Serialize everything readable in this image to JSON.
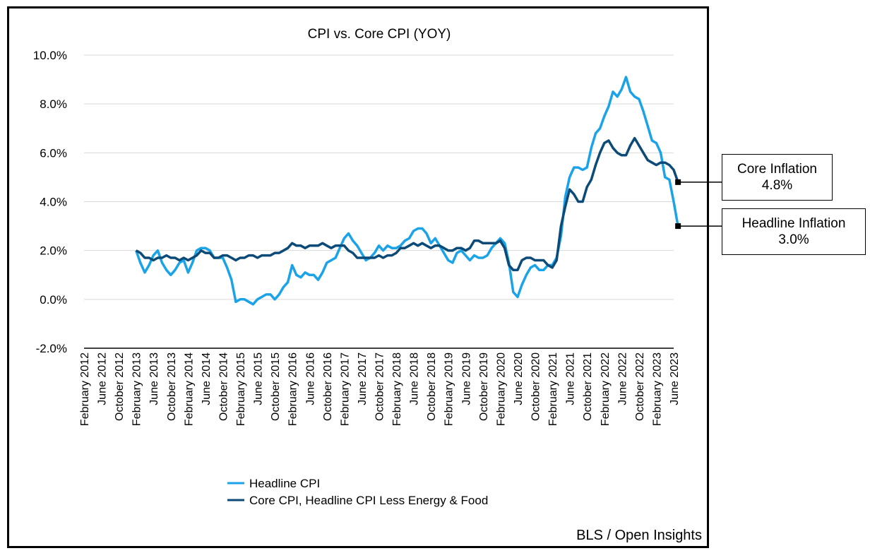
{
  "chart_data": {
    "type": "line",
    "title": "CPI vs. Core CPI (YOY)",
    "xlabel": "",
    "ylabel": "",
    "ylim": [
      -2.0,
      10.0
    ],
    "yticks": [
      "10.0%",
      "8.0%",
      "6.0%",
      "4.0%",
      "2.0%",
      "0.0%",
      "-2.0%"
    ],
    "ytick_values": [
      10,
      8,
      6,
      4,
      2,
      0,
      -2
    ],
    "x_range": [
      "2012-02",
      "2023-06"
    ],
    "xtick_labels": [
      "February 2012",
      "June 2012",
      "October 2012",
      "February 2013",
      "June 2013",
      "October 2013",
      "February 2014",
      "June 2014",
      "October 2014",
      "February 2015",
      "June 2015",
      "October 2015",
      "February 2016",
      "June 2016",
      "October 2016",
      "February 2017",
      "June 2017",
      "October 2017",
      "February 2018",
      "June 2018",
      "October 2018",
      "February 2019",
      "June 2019",
      "October 2019",
      "February 2020",
      "June 2020",
      "October 2020",
      "February 2021",
      "June 2021",
      "October 2021",
      "February 2022",
      "June 2022",
      "October 2022",
      "February 2023",
      "June 2023"
    ],
    "grid": "horizontal",
    "legend_position": "bottom",
    "series": [
      {
        "name": "Headline CPI",
        "color": "#1aa3e8",
        "start": "2013-02",
        "values": [
          2.0,
          1.5,
          1.1,
          1.4,
          1.8,
          2.0,
          1.5,
          1.2,
          1.0,
          1.2,
          1.5,
          1.6,
          1.1,
          1.5,
          2.0,
          2.1,
          2.1,
          2.0,
          1.7,
          1.7,
          1.7,
          1.3,
          0.8,
          -0.1,
          0.0,
          0.0,
          -0.1,
          -0.2,
          0.0,
          0.1,
          0.2,
          0.2,
          0.0,
          0.2,
          0.5,
          0.7,
          1.4,
          1.0,
          0.9,
          1.1,
          1.0,
          1.0,
          0.8,
          1.1,
          1.5,
          1.6,
          1.7,
          2.1,
          2.5,
          2.7,
          2.4,
          2.2,
          1.9,
          1.6,
          1.7,
          1.9,
          2.2,
          2.0,
          2.2,
          2.1,
          2.1,
          2.2,
          2.4,
          2.5,
          2.8,
          2.9,
          2.9,
          2.7,
          2.3,
          2.5,
          2.2,
          1.9,
          1.6,
          1.5,
          1.9,
          2.0,
          1.8,
          1.6,
          1.8,
          1.7,
          1.7,
          1.8,
          2.1,
          2.3,
          2.5,
          2.3,
          1.5,
          0.3,
          0.1,
          0.6,
          1.0,
          1.3,
          1.4,
          1.2,
          1.2,
          1.4,
          1.4,
          1.7,
          2.6,
          4.2,
          5.0,
          5.4,
          5.4,
          5.3,
          5.4,
          6.2,
          6.8,
          7.0,
          7.5,
          7.9,
          8.5,
          8.3,
          8.6,
          9.1,
          8.5,
          8.3,
          8.2,
          7.7,
          7.1,
          6.5,
          6.4,
          6.0,
          5.0,
          4.9,
          4.0,
          3.0
        ]
      },
      {
        "name": "Core CPI, Headline CPI Less Energy & Food",
        "color": "#0c4a77",
        "start": "2013-02",
        "values": [
          2.0,
          1.9,
          1.7,
          1.7,
          1.6,
          1.7,
          1.7,
          1.8,
          1.7,
          1.7,
          1.6,
          1.7,
          1.6,
          1.7,
          1.8,
          2.0,
          1.9,
          1.9,
          1.7,
          1.7,
          1.8,
          1.8,
          1.7,
          1.6,
          1.7,
          1.7,
          1.8,
          1.8,
          1.7,
          1.8,
          1.8,
          1.8,
          1.9,
          1.9,
          2.0,
          2.1,
          2.3,
          2.2,
          2.2,
          2.1,
          2.2,
          2.2,
          2.2,
          2.3,
          2.2,
          2.1,
          2.2,
          2.2,
          2.2,
          2.0,
          1.9,
          1.7,
          1.7,
          1.7,
          1.7,
          1.7,
          1.8,
          1.7,
          1.8,
          1.8,
          1.9,
          2.1,
          2.1,
          2.2,
          2.3,
          2.2,
          2.3,
          2.2,
          2.1,
          2.2,
          2.2,
          2.1,
          2.0,
          2.0,
          2.1,
          2.1,
          2.0,
          2.1,
          2.4,
          2.4,
          2.3,
          2.3,
          2.3,
          2.3,
          2.4,
          2.1,
          1.4,
          1.2,
          1.2,
          1.6,
          1.7,
          1.7,
          1.6,
          1.6,
          1.6,
          1.4,
          1.3,
          1.6,
          3.0,
          3.8,
          4.5,
          4.3,
          4.0,
          4.0,
          4.6,
          4.9,
          5.5,
          6.0,
          6.4,
          6.5,
          6.2,
          6.0,
          5.9,
          5.9,
          6.3,
          6.6,
          6.3,
          6.0,
          5.7,
          5.6,
          5.5,
          5.6,
          5.6,
          5.5,
          5.3,
          4.8
        ]
      }
    ],
    "annotations": {
      "core_label": "Core Inflation",
      "core_value": "4.8%",
      "headline_label": "Headline Inflation",
      "headline_value": "3.0%"
    },
    "source": "BLS / Open Insights"
  }
}
